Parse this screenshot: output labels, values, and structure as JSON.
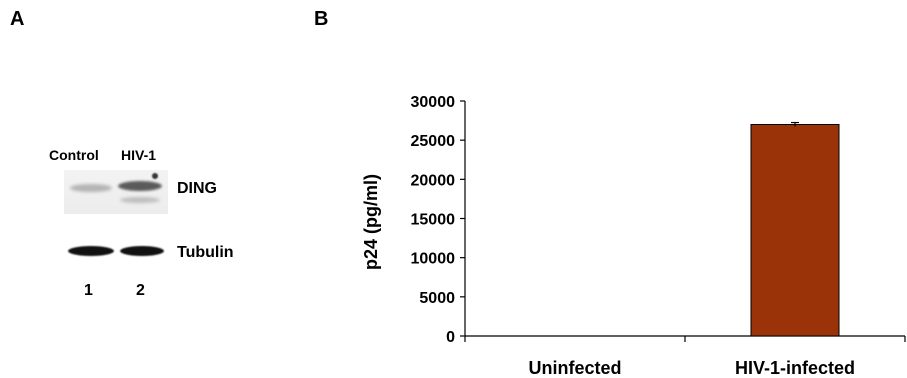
{
  "figure": {
    "panel_a": {
      "label": "A",
      "lane_headers": [
        "Control",
        "HIV-1"
      ],
      "proteins": [
        "DING",
        "Tubulin"
      ],
      "lane_numbers": [
        "1",
        "2"
      ]
    },
    "panel_b": {
      "label": "B"
    }
  },
  "chart_data": {
    "type": "bar",
    "categories": [
      "Uninfected",
      "HIV-1-infected"
    ],
    "values": [
      0,
      27000
    ],
    "error": [
      0,
      250
    ],
    "ylabel": "p24 (pg/ml)",
    "ylim": [
      0,
      30000
    ],
    "yticks": [
      0,
      5000,
      10000,
      15000,
      20000,
      25000,
      30000
    ],
    "ytick_labels": [
      "0",
      "5000",
      "10000",
      "15000",
      "20000",
      "25000",
      "30000"
    ],
    "bar_color": "#9b3308",
    "grid": false,
    "legend": false
  }
}
